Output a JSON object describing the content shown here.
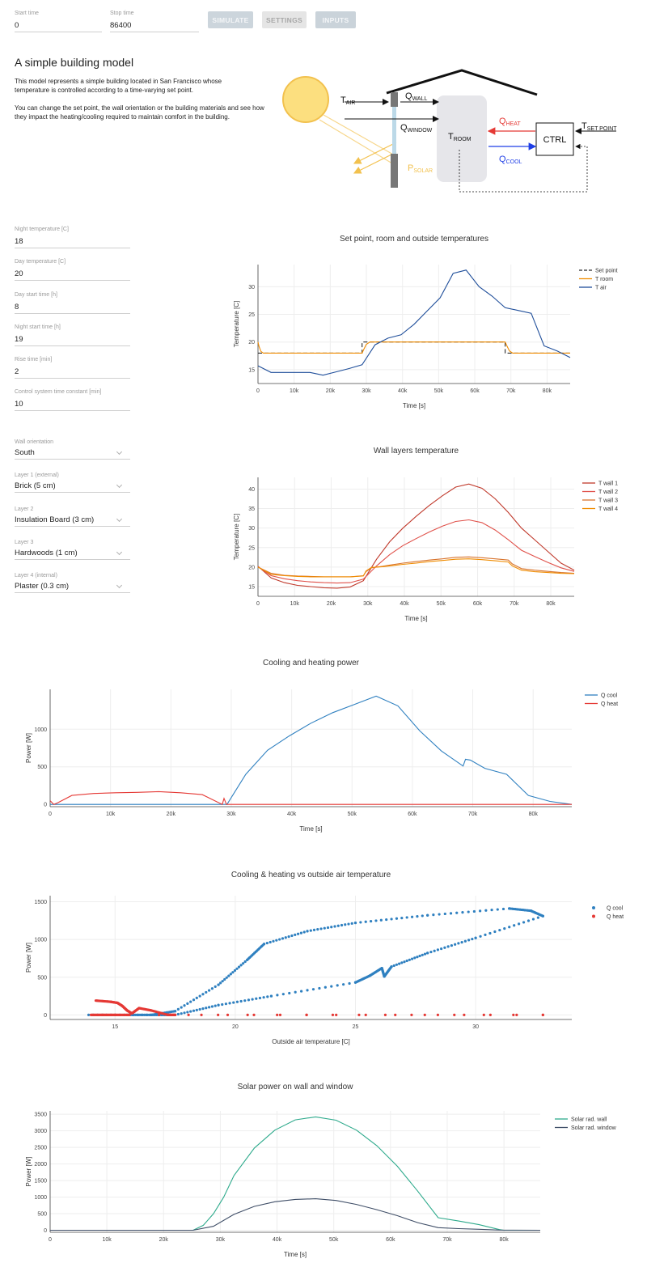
{
  "top_fields": {
    "start_time": {
      "label": "Start time",
      "value": "0"
    },
    "stop_time": {
      "label": "Stop time",
      "value": "86400"
    }
  },
  "buttons": {
    "simulate": "SIMULATE",
    "settings": "SETTINGS",
    "inputs": "INPUTS"
  },
  "intro": {
    "title": "A simple building model",
    "p1": "This model represents a simple building located in San Francisco whose temperature is controlled according to a time-varying set point.",
    "p2": "You can change the set point, the wall orientation or the building materials and see how they impact the heating/cooling required to maintain comfort in the building."
  },
  "diagram": {
    "t_air": {
      "main": "T",
      "sub": "AIR"
    },
    "q_wall": {
      "main": "Q",
      "sub": "WALL"
    },
    "q_window": {
      "main": "Q",
      "sub": "WINDOW"
    },
    "t_room": {
      "main": "T",
      "sub": "ROOM"
    },
    "q_heat": {
      "main": "Q",
      "sub": "HEAT"
    },
    "q_cool": {
      "main": "Q",
      "sub": "COOL"
    },
    "ctrl": "CTRL",
    "t_set": {
      "main": "T",
      "sub": "SET POINT"
    },
    "p_solar": {
      "main": "P",
      "sub": "SOLAR"
    },
    "colors": {
      "heat": "#e53935",
      "cool": "#1e3ee6",
      "solar": "#f2c14e",
      "sun": "#fcdf7f"
    }
  },
  "setpoint_fields": [
    {
      "label": "Night temperature [C]",
      "value": "18"
    },
    {
      "label": "Day temperature [C]",
      "value": "20"
    },
    {
      "label": "Day start time [h]",
      "value": "8"
    },
    {
      "label": "Night start time [h]",
      "value": "19"
    },
    {
      "label": "Rise time [min]",
      "value": "2"
    },
    {
      "label": "Control system time constant [min]",
      "value": "10"
    }
  ],
  "material_fields": [
    {
      "label": "Wall orientation",
      "value": "South"
    },
    {
      "label": "Layer 1 (external)",
      "value": "Brick (5 cm)"
    },
    {
      "label": "Layer 2",
      "value": "Insulation Board (3 cm)"
    },
    {
      "label": "Layer 3",
      "value": "Hardwoods (1 cm)"
    },
    {
      "label": "Layer 4 (internal)",
      "value": "Plaster (0.3 cm)"
    }
  ],
  "chart_data": [
    {
      "type": "line",
      "title": "Set point, room and outside temperatures",
      "xlabel": "Time [s]",
      "ylabel": "Temperature [C]",
      "xlim": [
        0,
        86400
      ],
      "ylim": [
        12.5,
        34
      ],
      "xticks": [
        0,
        10000,
        20000,
        30000,
        40000,
        50000,
        60000,
        70000,
        80000
      ],
      "xtick_labels": [
        "0",
        "10k",
        "20k",
        "30k",
        "40k",
        "50k",
        "60k",
        "70k",
        "80k"
      ],
      "yticks": [
        15,
        20,
        25,
        30
      ],
      "ytick_labels": [
        "15",
        "20",
        "25",
        "30"
      ],
      "legend_position": "top-right",
      "series": [
        {
          "name": "Set point",
          "color": "#2b2b2b",
          "dash": true,
          "x": [
            0,
            28800,
            28800,
            68400,
            68400,
            86400
          ],
          "y": [
            18,
            18,
            20,
            20,
            18,
            18
          ]
        },
        {
          "name": "T room",
          "color": "#f08c00",
          "x": [
            0,
            300,
            800,
            1500,
            28800,
            29300,
            30000,
            31000,
            68400,
            68900,
            69600,
            70500,
            86400
          ],
          "y": [
            20,
            19.2,
            18.3,
            18,
            18,
            18.7,
            19.6,
            20,
            20,
            19.3,
            18.4,
            18,
            18
          ]
        },
        {
          "name": "T air",
          "color": "#1f4e9a",
          "x": [
            0,
            3600,
            7200,
            10800,
            14400,
            18000,
            21600,
            25200,
            28800,
            32400,
            36000,
            39600,
            43200,
            46800,
            50400,
            54000,
            57600,
            61200,
            64800,
            68400,
            72000,
            75600,
            79200,
            82800,
            86400
          ],
          "y": [
            15.7,
            14.5,
            14.5,
            14.5,
            14.5,
            14,
            14.6,
            15.2,
            15.9,
            19.5,
            20.7,
            21.3,
            23.2,
            25.6,
            28,
            32.4,
            33,
            30,
            28.3,
            26.2,
            25.7,
            25.2,
            19.3,
            18.4,
            17.2
          ]
        }
      ]
    },
    {
      "type": "line",
      "title": "Wall layers temperature",
      "xlabel": "Time [s]",
      "ylabel": "Temperature [C]",
      "xlim": [
        0,
        86400
      ],
      "ylim": [
        12.5,
        43
      ],
      "xticks": [
        0,
        10000,
        20000,
        30000,
        40000,
        50000,
        60000,
        70000,
        80000
      ],
      "xtick_labels": [
        "0",
        "10k",
        "20k",
        "30k",
        "40k",
        "50k",
        "60k",
        "70k",
        "80k"
      ],
      "yticks": [
        15,
        20,
        25,
        30,
        35,
        40
      ],
      "ytick_labels": [
        "15",
        "20",
        "25",
        "30",
        "35",
        "40"
      ],
      "legend_position": "top-right",
      "series": [
        {
          "name": "T wall 1",
          "color": "#c0392b",
          "x": [
            0,
            3600,
            7200,
            10800,
            14400,
            18000,
            21600,
            25200,
            28800,
            32400,
            36000,
            39600,
            43200,
            46800,
            50400,
            54000,
            57600,
            61200,
            64800,
            68400,
            72000,
            75600,
            79200,
            82800,
            86400
          ],
          "y": [
            20.2,
            17.2,
            16,
            15.3,
            15,
            14.7,
            14.6,
            14.9,
            16.5,
            22,
            26.5,
            30,
            33,
            35.8,
            38.3,
            40.5,
            41.3,
            40.2,
            37.5,
            34,
            30,
            27,
            24,
            21,
            19.2
          ]
        },
        {
          "name": "T wall 2",
          "color": "#e0514a",
          "x": [
            0,
            3600,
            7200,
            10800,
            14400,
            18000,
            21600,
            25200,
            28800,
            32400,
            36000,
            39600,
            43200,
            46800,
            50400,
            54000,
            57600,
            61200,
            64800,
            68400,
            72000,
            75600,
            79200,
            82800,
            86400
          ],
          "y": [
            20.1,
            17.8,
            17,
            16.5,
            16.2,
            16,
            15.9,
            16,
            16.9,
            20.3,
            23.2,
            25.5,
            27.3,
            29,
            30.5,
            31.7,
            32.1,
            31.4,
            29.5,
            27,
            24.3,
            22.7,
            21.2,
            19.8,
            18.9
          ]
        },
        {
          "name": "T wall 3",
          "color": "#d8742e",
          "x": [
            0,
            3600,
            7200,
            10800,
            14400,
            18000,
            21600,
            25200,
            28800,
            29500,
            31000,
            34000,
            36000,
            39600,
            43200,
            46800,
            50400,
            54000,
            57600,
            61200,
            64800,
            68400,
            69500,
            72000,
            75600,
            79200,
            82800,
            86400
          ],
          "y": [
            20,
            18.4,
            17.9,
            17.7,
            17.6,
            17.5,
            17.5,
            17.5,
            17.8,
            18.8,
            19.8,
            20.2,
            20.5,
            21,
            21.4,
            21.8,
            22.1,
            22.5,
            22.6,
            22.4,
            22.1,
            21.8,
            20.8,
            19.6,
            19.2,
            18.9,
            18.6,
            18.4
          ]
        },
        {
          "name": "T wall 4",
          "color": "#f08c00",
          "x": [
            0,
            3600,
            7200,
            10800,
            14400,
            18000,
            21600,
            25200,
            28800,
            29500,
            31000,
            34000,
            36000,
            39600,
            43200,
            46800,
            50400,
            54000,
            57600,
            61200,
            64800,
            68400,
            69500,
            72000,
            75600,
            79200,
            82800,
            86400
          ],
          "y": [
            20,
            18.1,
            17.8,
            17.6,
            17.5,
            17.5,
            17.5,
            17.5,
            17.7,
            19,
            19.9,
            20.1,
            20.3,
            20.7,
            21,
            21.4,
            21.7,
            22,
            22.1,
            21.9,
            21.6,
            21.3,
            20.3,
            19.2,
            18.8,
            18.6,
            18.4,
            18.3
          ]
        }
      ]
    },
    {
      "type": "line",
      "title": "Cooling and heating power",
      "xlabel": "Time [s]",
      "ylabel": "Power [W]",
      "xlim": [
        0,
        86400
      ],
      "ylim": [
        -30,
        1530
      ],
      "xticks": [
        0,
        10000,
        20000,
        30000,
        40000,
        50000,
        60000,
        70000,
        80000
      ],
      "xtick_labels": [
        "0",
        "10k",
        "20k",
        "30k",
        "40k",
        "50k",
        "60k",
        "70k",
        "80k"
      ],
      "yticks": [
        0,
        500,
        1000
      ],
      "ytick_labels": [
        "0",
        "500",
        "1000"
      ],
      "legend_position": "top-right",
      "series": [
        {
          "name": "Q cool",
          "color": "#2f80c0",
          "x": [
            0,
            29300,
            32400,
            36000,
            39600,
            43200,
            46800,
            50400,
            54000,
            57600,
            61200,
            64800,
            68400,
            68800,
            69600,
            72000,
            75600,
            79200,
            82800,
            86400
          ],
          "y": [
            0,
            0,
            400,
            720,
            910,
            1080,
            1220,
            1330,
            1440,
            1310,
            980,
            710,
            510,
            600,
            590,
            480,
            400,
            120,
            40,
            0
          ]
        },
        {
          "name": "Q heat",
          "color": "#e53935",
          "x": [
            0,
            600,
            1200,
            3600,
            7200,
            10800,
            14400,
            18000,
            21600,
            25200,
            28500,
            28800,
            29200,
            29500,
            86400
          ],
          "y": [
            50,
            0,
            20,
            120,
            145,
            155,
            160,
            170,
            155,
            130,
            0,
            80,
            0,
            0,
            0
          ]
        }
      ]
    },
    {
      "type": "scatter",
      "title": "Cooling & heating vs outside air temperature",
      "xlabel": "Outside air temperature [C]",
      "ylabel": "Power [W]",
      "xlim": [
        12.3,
        34
      ],
      "ylim": [
        -60,
        1580
      ],
      "xticks": [
        15,
        20,
        25,
        30
      ],
      "xtick_labels": [
        "15",
        "20",
        "25",
        "30"
      ],
      "yticks": [
        0,
        500,
        1000,
        1500
      ],
      "ytick_labels": [
        "0",
        "500",
        "1000",
        "1500"
      ],
      "legend_position": "top-right",
      "series": [
        {
          "name": "Q cool",
          "color": "#2f80c0",
          "x": [
            13.9,
            16.5,
            17.5,
            19.3,
            20.5,
            21.2,
            23,
            25,
            28,
            31.4,
            32.3,
            32.8,
            30,
            28,
            26.5,
            26.2,
            26.1,
            25.6,
            25,
            21.5,
            19.3,
            17.5,
            16.5,
            15.5
          ],
          "y": [
            0,
            0,
            50,
            400,
            730,
            940,
            1110,
            1220,
            1320,
            1410,
            1380,
            1310,
            1020,
            820,
            640,
            510,
            620,
            520,
            430,
            250,
            130,
            0,
            0,
            0
          ]
        },
        {
          "name": "Q heat",
          "color": "#e53935",
          "x": [
            14.2,
            14.8,
            15.1,
            15.3,
            15.5,
            15.7,
            16,
            16.5,
            17.2,
            17.5,
            32.8,
            15.6,
            15,
            14.5,
            14
          ],
          "y": [
            190,
            175,
            160,
            120,
            60,
            20,
            90,
            60,
            0,
            0,
            0,
            0,
            0,
            0,
            0
          ]
        }
      ]
    },
    {
      "type": "line",
      "title": "Solar power on wall and window",
      "xlabel": "Time [s]",
      "ylabel": "Power [W]",
      "xlim": [
        0,
        86400
      ],
      "ylim": [
        -60,
        3600
      ],
      "xticks": [
        0,
        10000,
        20000,
        30000,
        40000,
        50000,
        60000,
        70000,
        80000
      ],
      "xtick_labels": [
        "0",
        "10k",
        "20k",
        "30k",
        "40k",
        "50k",
        "60k",
        "70k",
        "80k"
      ],
      "yticks": [
        0,
        500,
        1000,
        1500,
        2000,
        2500,
        3000,
        3500
      ],
      "ytick_labels": [
        "0",
        "500",
        "1000",
        "1500",
        "2000",
        "2500",
        "3000",
        "3500"
      ],
      "legend_position": "top-right",
      "series": [
        {
          "name": "Solar rad. wall",
          "color": "#2eaa8c",
          "x": [
            0,
            25200,
            27000,
            28800,
            30600,
            32400,
            36000,
            39600,
            43200,
            46800,
            50400,
            54000,
            57600,
            61200,
            64800,
            68400,
            72000,
            75600,
            79200,
            80000,
            86400
          ],
          "y": [
            0,
            0,
            150,
            500,
            1000,
            1650,
            2480,
            3020,
            3330,
            3420,
            3320,
            3020,
            2550,
            1930,
            1180,
            380,
            280,
            170,
            20,
            0,
            0
          ]
        },
        {
          "name": "Solar rad. window",
          "color": "#3f4e67",
          "x": [
            0,
            25200,
            28800,
            32400,
            36000,
            39600,
            43200,
            46800,
            50400,
            54000,
            57600,
            61200,
            64800,
            68400,
            72000,
            75600,
            79200,
            86400
          ],
          "y": [
            0,
            0,
            120,
            480,
            720,
            860,
            930,
            950,
            900,
            780,
            620,
            440,
            230,
            80,
            50,
            30,
            5,
            0
          ]
        }
      ]
    }
  ]
}
